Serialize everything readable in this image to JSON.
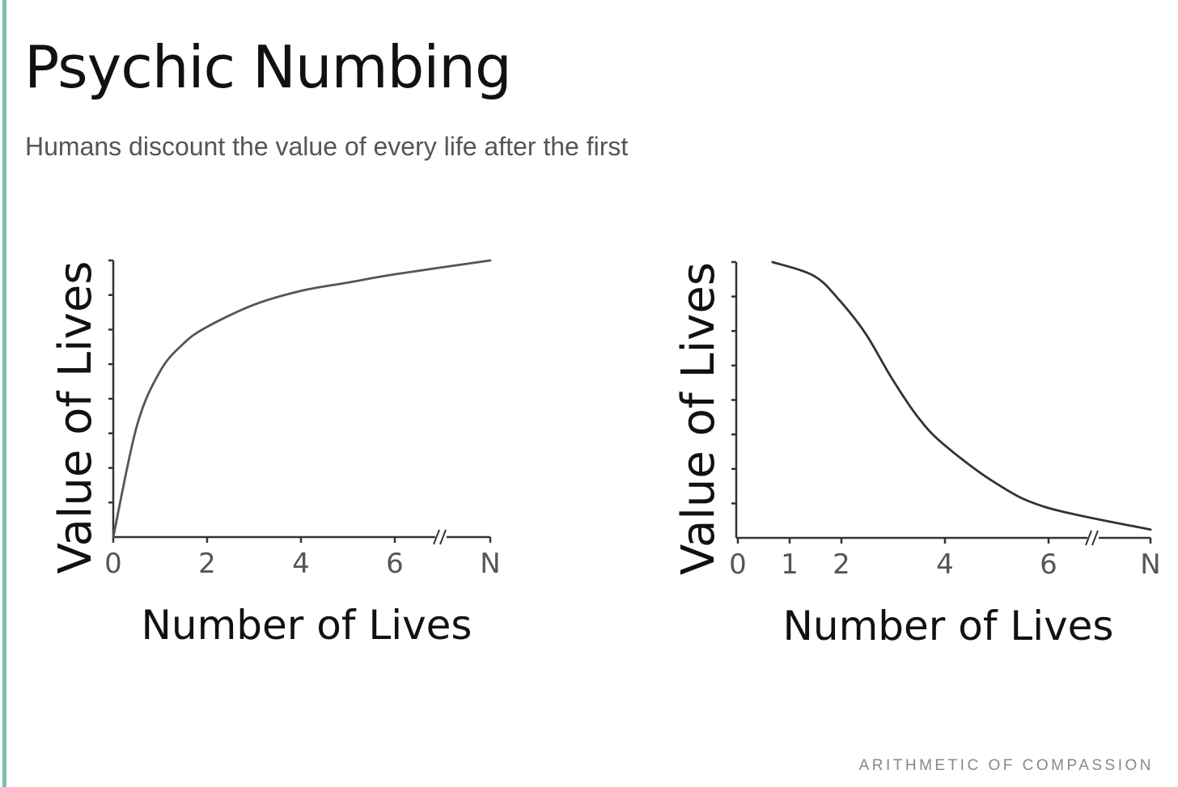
{
  "page": {
    "title": "Psychic Numbing",
    "subtitle": "Humans discount the value of every life after the first",
    "footer": "ARITHMETIC OF COMPASSION",
    "accent_color": "#7cc1b0"
  },
  "chart_data": [
    {
      "type": "line",
      "title": "",
      "xlabel": "Number of Lives",
      "ylabel": "Value of Lives",
      "x_ticks": [
        "0",
        "2",
        "4",
        "6",
        "N"
      ],
      "axis_break": "between 6 and N",
      "y_tick_count": 8,
      "y_tick_labels": [],
      "shape": "concave increasing, saturating",
      "series": [
        {
          "x": [
            0,
            0.5,
            1,
            1.5,
            2,
            3,
            4,
            5,
            6,
            "N"
          ],
          "y": [
            0,
            0.4,
            0.6,
            0.7,
            0.76,
            0.84,
            0.89,
            0.92,
            0.95,
            1.0
          ]
        }
      ],
      "ylim": [
        0,
        1
      ],
      "grid": false,
      "line_color": "#555555"
    },
    {
      "type": "line",
      "title": "",
      "xlabel": "Number of Lives",
      "ylabel": "Value of Lives",
      "x_ticks": [
        "0",
        "1",
        "2",
        "4",
        "6",
        "N"
      ],
      "axis_break": "between 6 and N",
      "y_tick_count": 8,
      "y_tick_labels": [],
      "shape": "decreasing, S-shaped",
      "series": [
        {
          "x": [
            0.7,
            1.5,
            2,
            2.5,
            3,
            3.5,
            4,
            5,
            6,
            "N"
          ],
          "y": [
            1.0,
            0.95,
            0.86,
            0.74,
            0.58,
            0.44,
            0.34,
            0.2,
            0.11,
            0.03
          ]
        }
      ],
      "ylim": [
        0,
        1
      ],
      "grid": false,
      "line_color": "#333333"
    }
  ]
}
